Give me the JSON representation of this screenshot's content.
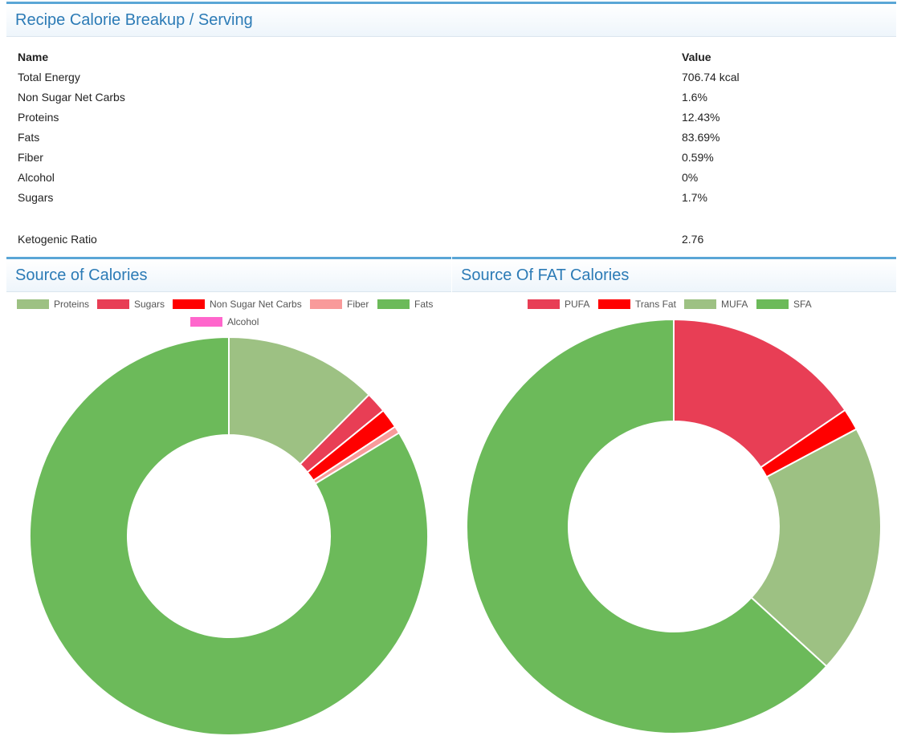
{
  "breakup": {
    "title": "Recipe Calorie Breakup / Serving",
    "col_name": "Name",
    "col_value": "Value",
    "rows": [
      {
        "name": "Total Energy",
        "value": "706.74 kcal"
      },
      {
        "name": "Non Sugar Net Carbs",
        "value": "1.6%"
      },
      {
        "name": "Proteins",
        "value": "12.43%"
      },
      {
        "name": "Fats",
        "value": "83.69%"
      },
      {
        "name": "Fiber",
        "value": "0.59%"
      },
      {
        "name": "Alcohol",
        "value": "0%"
      },
      {
        "name": "Sugars",
        "value": "1.7%"
      }
    ],
    "ketogenic": {
      "name": "Ketogenic Ratio",
      "value": "2.76"
    }
  },
  "chart_data": [
    {
      "type": "pie",
      "title": "Source of Calories",
      "legend_position": "top",
      "categories": [
        "Proteins",
        "Sugars",
        "Non Sugar Net Carbs",
        "Fiber",
        "Fats",
        "Alcohol"
      ],
      "values": [
        12.43,
        1.7,
        1.6,
        0.59,
        83.69,
        0
      ],
      "colors": [
        "#9dc183",
        "#e83e55",
        "#ff0000",
        "#f99a9a",
        "#6cba5a",
        "#ff66cc"
      ]
    },
    {
      "type": "pie",
      "title": "Source Of FAT Calories",
      "legend_position": "top",
      "categories": [
        "PUFA",
        "Trans Fat",
        "MUFA",
        "SFA"
      ],
      "values": [
        15.5,
        1.7,
        19.6,
        63.2
      ],
      "colors": [
        "#e83e55",
        "#ff0000",
        "#9dc183",
        "#6cba5a"
      ]
    }
  ]
}
